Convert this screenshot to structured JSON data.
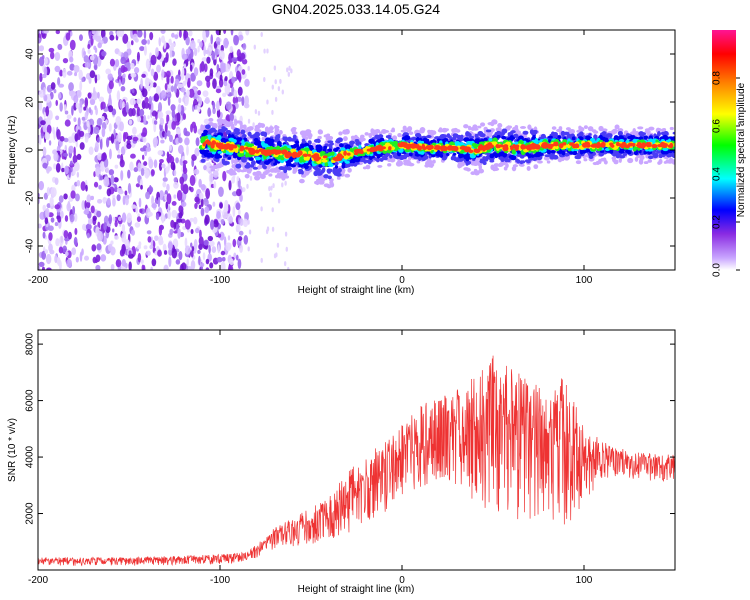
{
  "title": "GN04.2025.033.14.05.G24",
  "chart_data": [
    {
      "type": "heatmap",
      "xlabel": "Height of straight line (km)",
      "ylabel": "Frequency (Hz)",
      "xlim": [
        -200,
        150
      ],
      "ylim": [
        -50,
        50
      ],
      "xticks": [
        -200,
        -100,
        0,
        100
      ],
      "yticks": [
        -40,
        -20,
        0,
        20,
        40
      ],
      "colorbar": {
        "label": "Normalized spectral amplitude",
        "range": [
          0,
          1
        ],
        "ticks": [
          "0.0",
          "0.2",
          "0.4",
          "0.6",
          "0.8"
        ],
        "colors": [
          "#ffffff",
          "#8a2be2",
          "#0000ff",
          "#00ffff",
          "#00ff00",
          "#ffff00",
          "#ff8000",
          "#ff0000",
          "#ff1493"
        ]
      },
      "noise_region_x": [
        -200,
        -85
      ],
      "ridge": {
        "x": [
          -110,
          -100,
          -85,
          -70,
          -55,
          -40,
          -30,
          -20,
          -10,
          0,
          10,
          20,
          30,
          40,
          50,
          60,
          70,
          80,
          90,
          100,
          110,
          120,
          130,
          140,
          150
        ],
        "freq": [
          3,
          2,
          0,
          -1,
          -2,
          -4,
          -2,
          0,
          1,
          2,
          1,
          1,
          1,
          0,
          2,
          1,
          1,
          2,
          2,
          2,
          2,
          2,
          2,
          2,
          2
        ]
      }
    },
    {
      "type": "line",
      "xlabel": "Height of straight line (km)",
      "ylabel": "SNR (10 * v/v)",
      "xlim": [
        -200,
        150
      ],
      "ylim": [
        0,
        8500
      ],
      "xticks": [
        -200,
        -100,
        0,
        100
      ],
      "yticks": [
        2000,
        4000,
        6000,
        8000
      ],
      "color": "#ee3333",
      "envelope": {
        "x": [
          -200,
          -150,
          -100,
          -85,
          -80,
          -70,
          -60,
          -50,
          -40,
          -30,
          -20,
          -10,
          0,
          10,
          20,
          30,
          40,
          50,
          60,
          70,
          80,
          90,
          100,
          110,
          120,
          130,
          140,
          150
        ],
        "low": [
          150,
          150,
          200,
          300,
          400,
          700,
          800,
          900,
          1000,
          1200,
          1600,
          2000,
          2600,
          2900,
          3000,
          2600,
          2400,
          2000,
          1800,
          1600,
          1800,
          1500,
          2400,
          3200,
          3300,
          3200,
          3100,
          3100
        ],
        "high": [
          450,
          450,
          550,
          650,
          900,
          1500,
          1900,
          2200,
          2600,
          3500,
          4000,
          4600,
          5200,
          5800,
          6200,
          6500,
          6900,
          7600,
          7200,
          6900,
          6200,
          7000,
          5000,
          4600,
          4300,
          4200,
          4100,
          4100
        ]
      }
    }
  ]
}
